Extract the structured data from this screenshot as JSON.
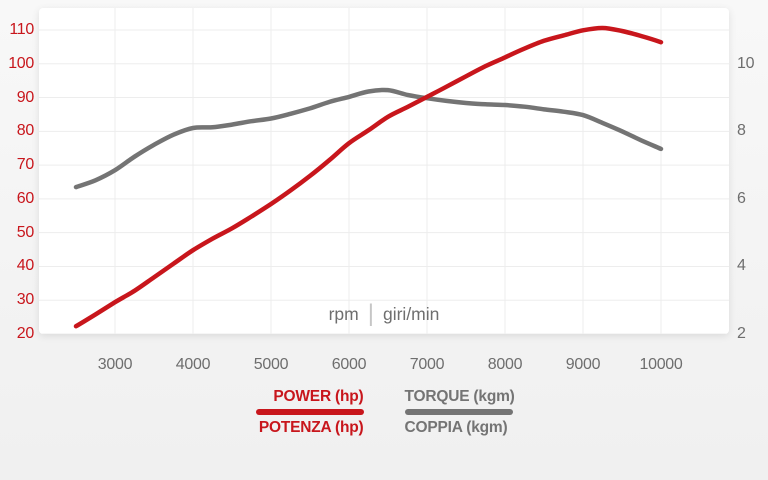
{
  "chart_data": {
    "type": "line",
    "title": "",
    "xlabel": "rpm | giri/min",
    "x_axis_unit": {
      "left": "rpm",
      "separator": "|",
      "right": "giri/min"
    },
    "x_ticks": [
      3000,
      4000,
      5000,
      6000,
      7000,
      8000,
      9000,
      10000
    ],
    "x_range": [
      2500,
      10000
    ],
    "grid": true,
    "grid_color": "#ededed",
    "axis_text_color": "#6e6e6e",
    "legend_position": "bottom",
    "y_left": {
      "ticks": [
        110,
        100,
        90,
        80,
        70,
        60,
        50,
        40,
        30,
        20
      ],
      "range": [
        20,
        110
      ],
      "color": "#c8161c"
    },
    "y_right": {
      "ticks": [
        10,
        8,
        6,
        4,
        2
      ],
      "range": [
        2,
        11
      ],
      "color": "#6e6e6e"
    },
    "x": [
      2500,
      2750,
      3000,
      3250,
      3500,
      3750,
      4000,
      4250,
      4500,
      4750,
      5000,
      5250,
      5500,
      5750,
      6000,
      6250,
      6500,
      6750,
      7000,
      7250,
      7500,
      7750,
      8000,
      8250,
      8500,
      8750,
      9000,
      9250,
      9500,
      9750,
      10000
    ],
    "series": [
      {
        "name": "POWER (hp)",
        "name_alt": "POTENZA (hp)",
        "axis": "left",
        "color": "#c8161c",
        "values": [
          22.3,
          25.8,
          29.4,
          32.8,
          36.8,
          40.8,
          44.8,
          48.2,
          51.3,
          54.8,
          58.5,
          62.5,
          66.8,
          71.5,
          76.5,
          80.3,
          84.3,
          87.2,
          90.2,
          93.2,
          96.3,
          99.3,
          101.9,
          104.5,
          106.8,
          108.4,
          109.9,
          110.6,
          109.7,
          108.2,
          106.4
        ]
      },
      {
        "name": "TORQUE (kgm)",
        "name_alt": "COPPIA (kgm)",
        "axis": "right",
        "color": "#747474",
        "values": [
          6.35,
          6.55,
          6.85,
          7.25,
          7.6,
          7.9,
          8.1,
          8.12,
          8.2,
          8.3,
          8.38,
          8.52,
          8.68,
          8.87,
          9.02,
          9.18,
          9.22,
          9.08,
          8.98,
          8.9,
          8.84,
          8.8,
          8.78,
          8.73,
          8.65,
          8.58,
          8.48,
          8.25,
          8.0,
          7.73,
          7.48
        ]
      }
    ]
  }
}
